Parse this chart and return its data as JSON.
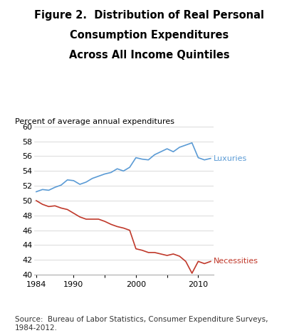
{
  "title_line1": "Figure 2.  Distribution of Real Personal",
  "title_line2": "Consumption Expenditures",
  "title_line3": "Across All Income Quintiles",
  "ylabel": "Percent of average annual expenditures",
  "source": "Source:  Bureau of Labor Statistics, Consumer Expenditure Surveys,\n1984-2012.",
  "xlim": [
    1984,
    2012
  ],
  "ylim": [
    40,
    60
  ],
  "yticks": [
    40,
    42,
    44,
    46,
    48,
    50,
    52,
    54,
    56,
    58,
    60
  ],
  "xticks": [
    1984,
    1990,
    1995,
    2000,
    2005,
    2010
  ],
  "xtick_labels": [
    "1984",
    "1990",
    "",
    "2000",
    "",
    "2010"
  ],
  "luxuries_color": "#5b9bd5",
  "necessities_color": "#c0392b",
  "years": [
    1984,
    1985,
    1986,
    1987,
    1988,
    1989,
    1990,
    1991,
    1992,
    1993,
    1994,
    1995,
    1996,
    1997,
    1998,
    1999,
    2000,
    2001,
    2002,
    2003,
    2004,
    2005,
    2006,
    2007,
    2008,
    2009,
    2010,
    2011,
    2012
  ],
  "luxuries": [
    51.2,
    51.5,
    51.4,
    51.8,
    52.1,
    52.8,
    52.7,
    52.2,
    52.5,
    53.0,
    53.3,
    53.6,
    53.8,
    54.3,
    54.0,
    54.5,
    55.8,
    55.6,
    55.5,
    56.2,
    56.6,
    57.0,
    56.6,
    57.2,
    57.5,
    57.8,
    55.8,
    55.5,
    55.7
  ],
  "necessities": [
    50.0,
    49.5,
    49.2,
    49.3,
    49.0,
    48.8,
    48.3,
    47.8,
    47.5,
    47.5,
    47.5,
    47.2,
    46.8,
    46.5,
    46.3,
    46.0,
    43.5,
    43.3,
    43.0,
    43.0,
    42.8,
    42.6,
    42.8,
    42.5,
    41.8,
    40.2,
    41.8,
    41.5,
    41.8
  ],
  "bg_color": "#ffffff",
  "grid_color": "#cccccc",
  "label_luxuries": "Luxuries",
  "label_necessities": "Necessities",
  "title_fontsize": 10.5,
  "label_fontsize": 8.0,
  "source_fontsize": 7.5
}
